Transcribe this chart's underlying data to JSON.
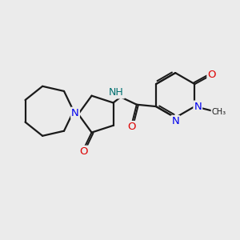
{
  "bg_color": "#ebebeb",
  "bond_color": "#1a1a1a",
  "N_color": "#0000ee",
  "O_color": "#dd0000",
  "NH_color": "#007070",
  "line_width": 1.6,
  "font_size": 8.5,
  "fig_size": [
    3.0,
    3.0
  ],
  "dpi": 100,
  "xlim": [
    0,
    10
  ],
  "ylim": [
    0,
    10
  ]
}
